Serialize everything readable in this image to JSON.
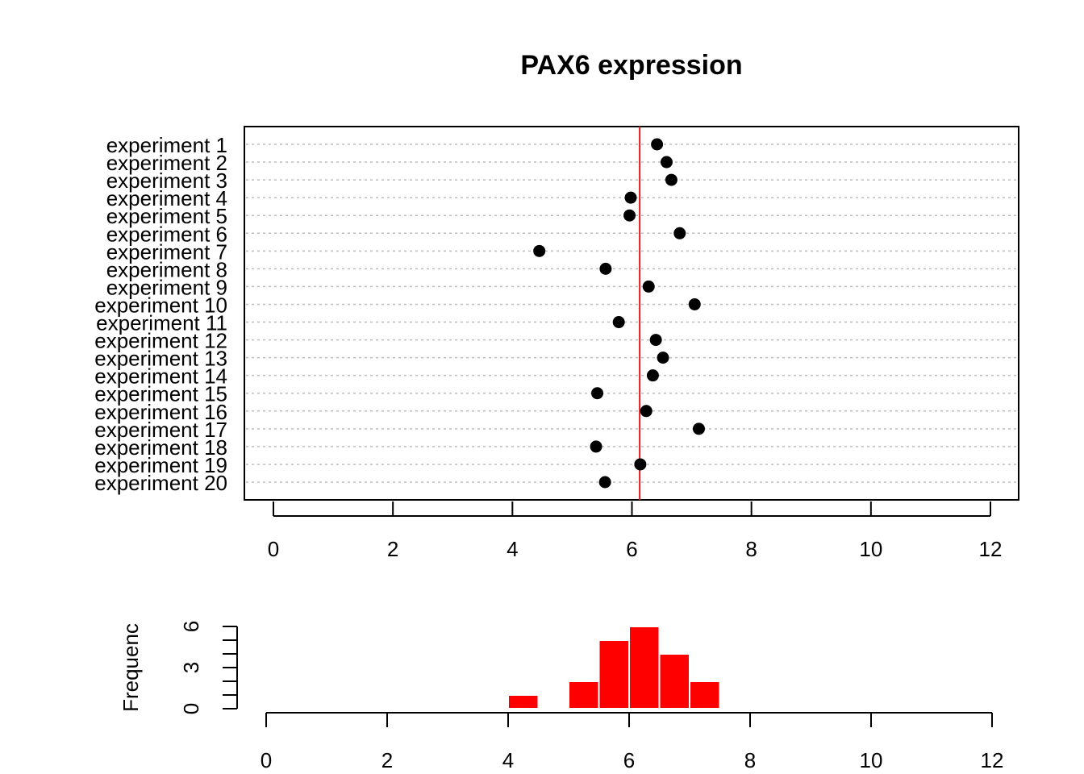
{
  "chart_data": [
    {
      "type": "scatter",
      "title": "PAX6 expression",
      "categories": [
        "experiment 1",
        "experiment 2",
        "experiment 3",
        "experiment 4",
        "experiment 5",
        "experiment 6",
        "experiment 7",
        "experiment 8",
        "experiment 9",
        "experiment 10",
        "experiment 11",
        "experiment 12",
        "experiment 13",
        "experiment 14",
        "experiment 15",
        "experiment 16",
        "experiment 17",
        "experiment 18",
        "experiment 19",
        "experiment 20"
      ],
      "values": [
        6.42,
        6.58,
        6.66,
        5.98,
        5.96,
        6.8,
        4.45,
        5.56,
        6.28,
        7.05,
        5.78,
        6.4,
        6.52,
        6.35,
        5.42,
        6.24,
        7.12,
        5.4,
        6.14,
        5.55
      ],
      "reference_line": 6.13,
      "xlim": [
        0,
        12
      ],
      "xticks": [
        "0",
        "2",
        "4",
        "6",
        "8",
        "10",
        "12"
      ],
      "grid": "dotted horizontal",
      "colors": {
        "points": "#000000",
        "reference_line": "#e41a1c",
        "grid": "#bdbdbd"
      }
    },
    {
      "type": "bar",
      "ylabel": "Frequenc",
      "bin_edges": [
        4.0,
        4.5,
        5.0,
        5.5,
        6.0,
        6.5,
        7.0,
        7.5
      ],
      "values": [
        1,
        0,
        2,
        5,
        6,
        4,
        2
      ],
      "xlim": [
        0,
        12
      ],
      "ylim": [
        0,
        6
      ],
      "xticks": [
        "0",
        "2",
        "4",
        "6",
        "8",
        "10",
        "12"
      ],
      "yticks": [
        "0",
        "3",
        "6"
      ],
      "colors": {
        "bars": "#ff0000",
        "bar_border": "#ffffff"
      }
    }
  ]
}
